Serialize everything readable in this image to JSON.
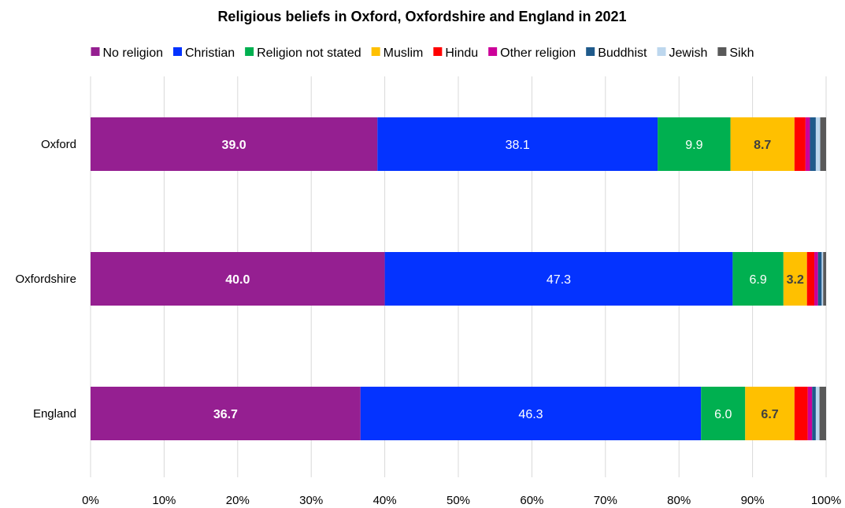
{
  "chart_data": {
    "type": "bar",
    "orientation": "horizontal",
    "stacked": true,
    "title": "Religious beliefs in Oxford, Oxfordshire and England in 2021",
    "categories": [
      "Oxford",
      "Oxfordshire",
      "England"
    ],
    "xlim": [
      0,
      100
    ],
    "x_ticks": [
      "0%",
      "10%",
      "20%",
      "30%",
      "40%",
      "50%",
      "60%",
      "70%",
      "80%",
      "90%",
      "100%"
    ],
    "grid": "vertical",
    "legend_position": "top",
    "series": [
      {
        "name": "No religion",
        "color": "#951f91",
        "values": [
          39.0,
          40.0,
          36.7
        ],
        "labels": [
          "39.0",
          "40.0",
          "36.7"
        ],
        "label_color": "#ffffff",
        "label_bold": true
      },
      {
        "name": "Christian",
        "color": "#0433ff",
        "values": [
          38.1,
          47.3,
          46.3
        ],
        "labels": [
          "38.1",
          "47.3",
          "46.3"
        ],
        "label_color": "#ffffff",
        "label_bold": false
      },
      {
        "name": "Religion not stated",
        "color": "#00b050",
        "values": [
          9.9,
          6.9,
          6.0
        ],
        "labels": [
          "9.9",
          "6.9",
          "6.0"
        ],
        "label_color": "#ffffff",
        "label_bold": false
      },
      {
        "name": "Muslim",
        "color": "#ffc000",
        "values": [
          8.7,
          3.2,
          6.7
        ],
        "labels": [
          "8.7",
          "3.2",
          "6.7"
        ],
        "label_color": "#404040",
        "label_bold": true
      },
      {
        "name": "Hindu",
        "color": "#ff0000",
        "values": [
          1.5,
          1.0,
          1.8
        ],
        "labels": [
          "",
          "",
          ""
        ],
        "label_color": "#ffffff",
        "label_bold": false
      },
      {
        "name": "Other religion",
        "color": "#cc0099",
        "values": [
          0.6,
          0.5,
          0.6
        ],
        "labels": [
          "",
          "",
          ""
        ],
        "label_color": "#ffffff",
        "label_bold": false
      },
      {
        "name": "Buddhist",
        "color": "#1f5a8b",
        "values": [
          0.8,
          0.5,
          0.5
        ],
        "labels": [
          "",
          "",
          ""
        ],
        "label_color": "#ffffff",
        "label_bold": false
      },
      {
        "name": "Jewish",
        "color": "#bdd7ee",
        "values": [
          0.6,
          0.2,
          0.5
        ],
        "labels": [
          "",
          "",
          ""
        ],
        "label_color": "#ffffff",
        "label_bold": false
      },
      {
        "name": "Sikh",
        "color": "#595959",
        "values": [
          0.8,
          0.4,
          0.9
        ],
        "labels": [
          "",
          "",
          ""
        ],
        "label_color": "#ffffff",
        "label_bold": false
      }
    ]
  }
}
